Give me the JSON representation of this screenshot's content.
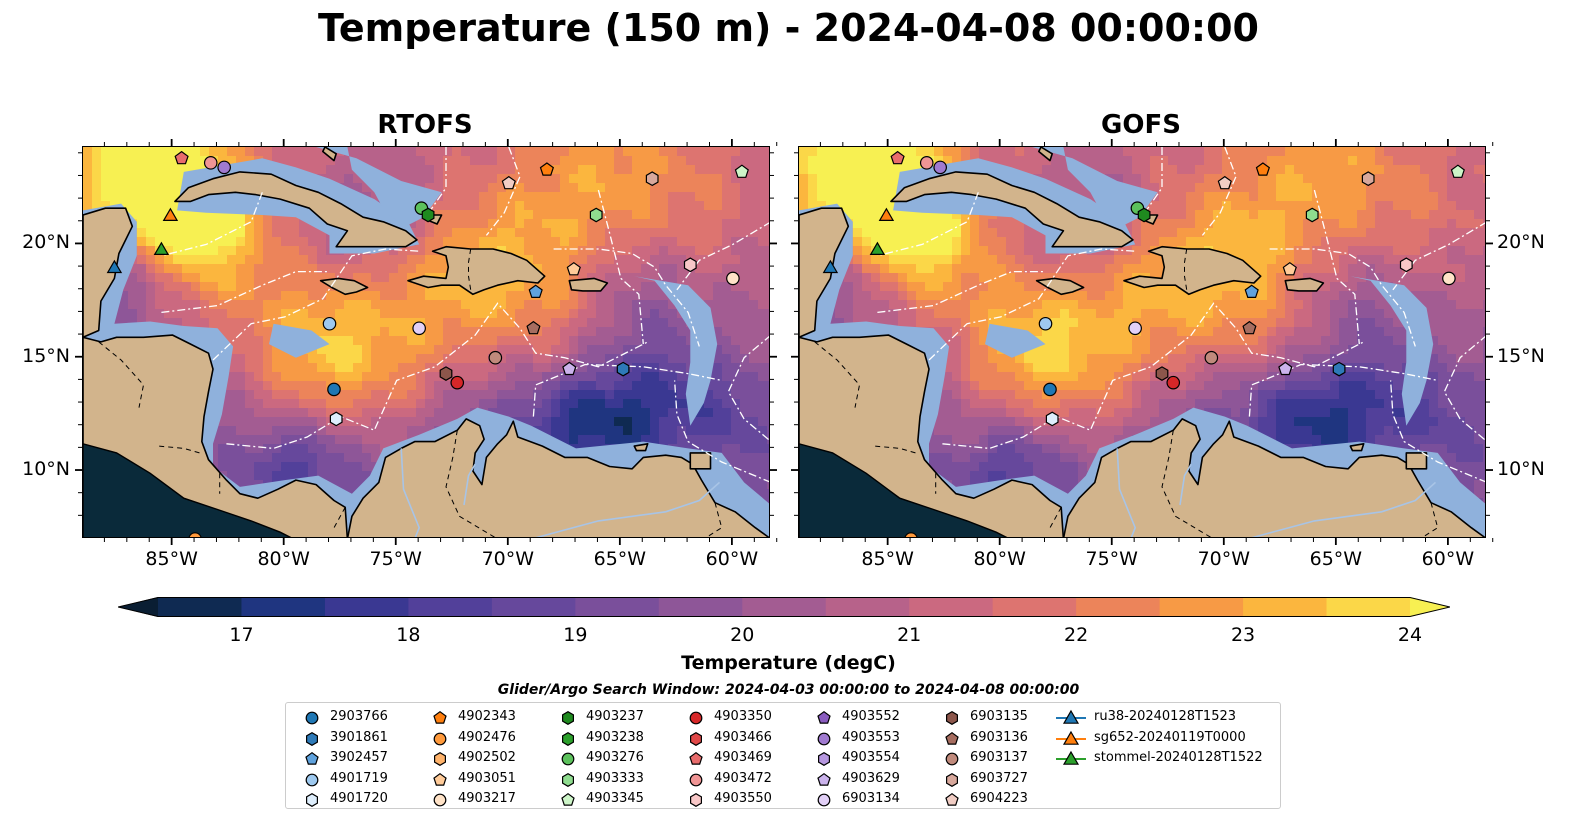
{
  "title": "Temperature (150 m) - 2024-04-08 00:00:00",
  "panels": [
    {
      "title": "RTOFS"
    },
    {
      "title": "GOFS"
    }
  ],
  "axes": {
    "x_ticks": [
      "85°W",
      "80°W",
      "75°W",
      "70°W",
      "65°W",
      "60°W"
    ],
    "y_ticks": [
      "20°N",
      "15°N",
      "10°N"
    ],
    "lon_range": [
      -89,
      -58.3
    ],
    "lat_range": [
      7,
      24.3
    ]
  },
  "colorbar": {
    "label": "Temperature (degC)",
    "ticks": [
      "17",
      "18",
      "19",
      "20",
      "21",
      "22",
      "23",
      "24"
    ],
    "range": [
      16.5,
      24.5
    ],
    "extend": "both",
    "colors": [
      "#0a1e33",
      "#0f2a52",
      "#1f3580",
      "#3a3892",
      "#52409a",
      "#66489c",
      "#7a4f9b",
      "#8e5698",
      "#a35c92",
      "#b7628a",
      "#cb6980",
      "#dd7470",
      "#ec845a",
      "#f79a45",
      "#fbb63e",
      "#fbd748",
      "#f7f052"
    ]
  },
  "search_window": "Glider/Argo Search Window: 2024-04-03 00:00:00 to 2024-04-08 00:00:00",
  "map_colors": {
    "land": "#d2b48c",
    "shelf": "#8fb1dc",
    "eez": "#ffffff",
    "coast": "#000000"
  },
  "legend": [
    {
      "label": "2903766",
      "marker": "circle",
      "color": "#1f77b4"
    },
    {
      "label": "3901861",
      "marker": "hexagon",
      "color": "#2e7ab8"
    },
    {
      "label": "3902457",
      "marker": "pentagon",
      "color": "#5fa2dd"
    },
    {
      "label": "4901719",
      "marker": "circle",
      "color": "#9ec9ef"
    },
    {
      "label": "4901720",
      "marker": "hexagon",
      "color": "#deeefc"
    },
    {
      "label": "4902343",
      "marker": "pentagon",
      "color": "#ff7f0e"
    },
    {
      "label": "4902476",
      "marker": "circle",
      "color": "#ff9a3c"
    },
    {
      "label": "4902502",
      "marker": "hexagon",
      "color": "#ffb36b"
    },
    {
      "label": "4903051",
      "marker": "pentagon",
      "color": "#ffcb99"
    },
    {
      "label": "4903217",
      "marker": "circle",
      "color": "#ffe3c8"
    },
    {
      "label": "4903237",
      "marker": "hexagon",
      "color": "#1f8a1f"
    },
    {
      "label": "4903238",
      "marker": "hexagon",
      "color": "#2ca02c"
    },
    {
      "label": "4903276",
      "marker": "circle",
      "color": "#5cc15c"
    },
    {
      "label": "4903333",
      "marker": "hexagon",
      "color": "#8fdc8f"
    },
    {
      "label": "4903345",
      "marker": "pentagon",
      "color": "#cdf5c8"
    },
    {
      "label": "4903350",
      "marker": "circle",
      "color": "#d62728"
    },
    {
      "label": "4903466",
      "marker": "hexagon",
      "color": "#e04848"
    },
    {
      "label": "4903469",
      "marker": "pentagon",
      "color": "#e86c6c"
    },
    {
      "label": "4903472",
      "marker": "circle",
      "color": "#f09595"
    },
    {
      "label": "4903550",
      "marker": "hexagon",
      "color": "#f8c7c7"
    },
    {
      "label": "4903552",
      "marker": "pentagon",
      "color": "#8a5cbf"
    },
    {
      "label": "4903553",
      "marker": "circle",
      "color": "#a07ad0"
    },
    {
      "label": "4903554",
      "marker": "hexagon",
      "color": "#b697df"
    },
    {
      "label": "4903629",
      "marker": "pentagon",
      "color": "#cbb3ec"
    },
    {
      "label": "6903134",
      "marker": "circle",
      "color": "#e2d0f7"
    },
    {
      "label": "6903135",
      "marker": "hexagon",
      "color": "#8c564b"
    },
    {
      "label": "6903136",
      "marker": "pentagon",
      "color": "#a66d60"
    },
    {
      "label": "6903137",
      "marker": "circle",
      "color": "#c08a7c"
    },
    {
      "label": "6903727",
      "marker": "hexagon",
      "color": "#d8a89c"
    },
    {
      "label": "6904223",
      "marker": "pentagon",
      "color": "#f1cdc4"
    },
    {
      "label": "ru38-20240128T1523",
      "marker": "triangle-line",
      "color": "#1f77b4"
    },
    {
      "label": "sg652-20240119T0000",
      "marker": "triangle-line",
      "color": "#ff7f0e"
    },
    {
      "label": "stommel-20240128T1522",
      "marker": "triangle-line",
      "color": "#2ca02c"
    }
  ],
  "floats": [
    {
      "id": "4902343",
      "lon": -68.3,
      "lat": 23.3
    },
    {
      "id": "4903345",
      "lon": -59.6,
      "lat": 23.2
    },
    {
      "id": "4902476",
      "lon": -84.0,
      "lat": 7.0
    },
    {
      "id": "4903276",
      "lon": -73.9,
      "lat": 21.6
    },
    {
      "id": "4903237",
      "lon": -73.6,
      "lat": 21.3
    },
    {
      "id": "4903333",
      "lon": -66.1,
      "lat": 21.3
    },
    {
      "id": "4903217",
      "lon": -60.0,
      "lat": 18.5
    },
    {
      "id": "4903051",
      "lon": -67.1,
      "lat": 18.9
    },
    {
      "id": "4903550",
      "lon": -61.9,
      "lat": 19.1
    },
    {
      "id": "6904223",
      "lon": -70.0,
      "lat": 22.7
    },
    {
      "id": "6903727",
      "lon": -63.6,
      "lat": 22.9
    },
    {
      "id": "4903469",
      "lon": -84.6,
      "lat": 23.8
    },
    {
      "id": "4903472",
      "lon": -83.3,
      "lat": 23.6
    },
    {
      "id": "4903553",
      "lon": -82.7,
      "lat": 23.4
    },
    {
      "id": "3902457",
      "lon": -68.8,
      "lat": 17.9
    },
    {
      "id": "6903136",
      "lon": -68.9,
      "lat": 16.3
    },
    {
      "id": "4901719",
      "lon": -78.0,
      "lat": 16.5
    },
    {
      "id": "6903134",
      "lon": -74.0,
      "lat": 16.3
    },
    {
      "id": "6903137",
      "lon": -70.6,
      "lat": 15.0
    },
    {
      "id": "6903135",
      "lon": -72.8,
      "lat": 14.3
    },
    {
      "id": "4903350",
      "lon": -72.3,
      "lat": 13.9
    },
    {
      "id": "2903766",
      "lon": -77.8,
      "lat": 13.6
    },
    {
      "id": "4901720",
      "lon": -77.7,
      "lat": 12.3
    },
    {
      "id": "4903629",
      "lon": -67.3,
      "lat": 14.5
    },
    {
      "id": "3901861",
      "lon": -64.9,
      "lat": 14.5
    }
  ],
  "gliders": [
    {
      "id": "ru38-20240128T1523",
      "lon": -87.6,
      "lat": 19.0
    },
    {
      "id": "sg652-20240119T0000",
      "lon": -85.1,
      "lat": 21.3
    },
    {
      "id": "stommel-20240128T1522",
      "lon": -85.5,
      "lat": 19.8
    }
  ]
}
